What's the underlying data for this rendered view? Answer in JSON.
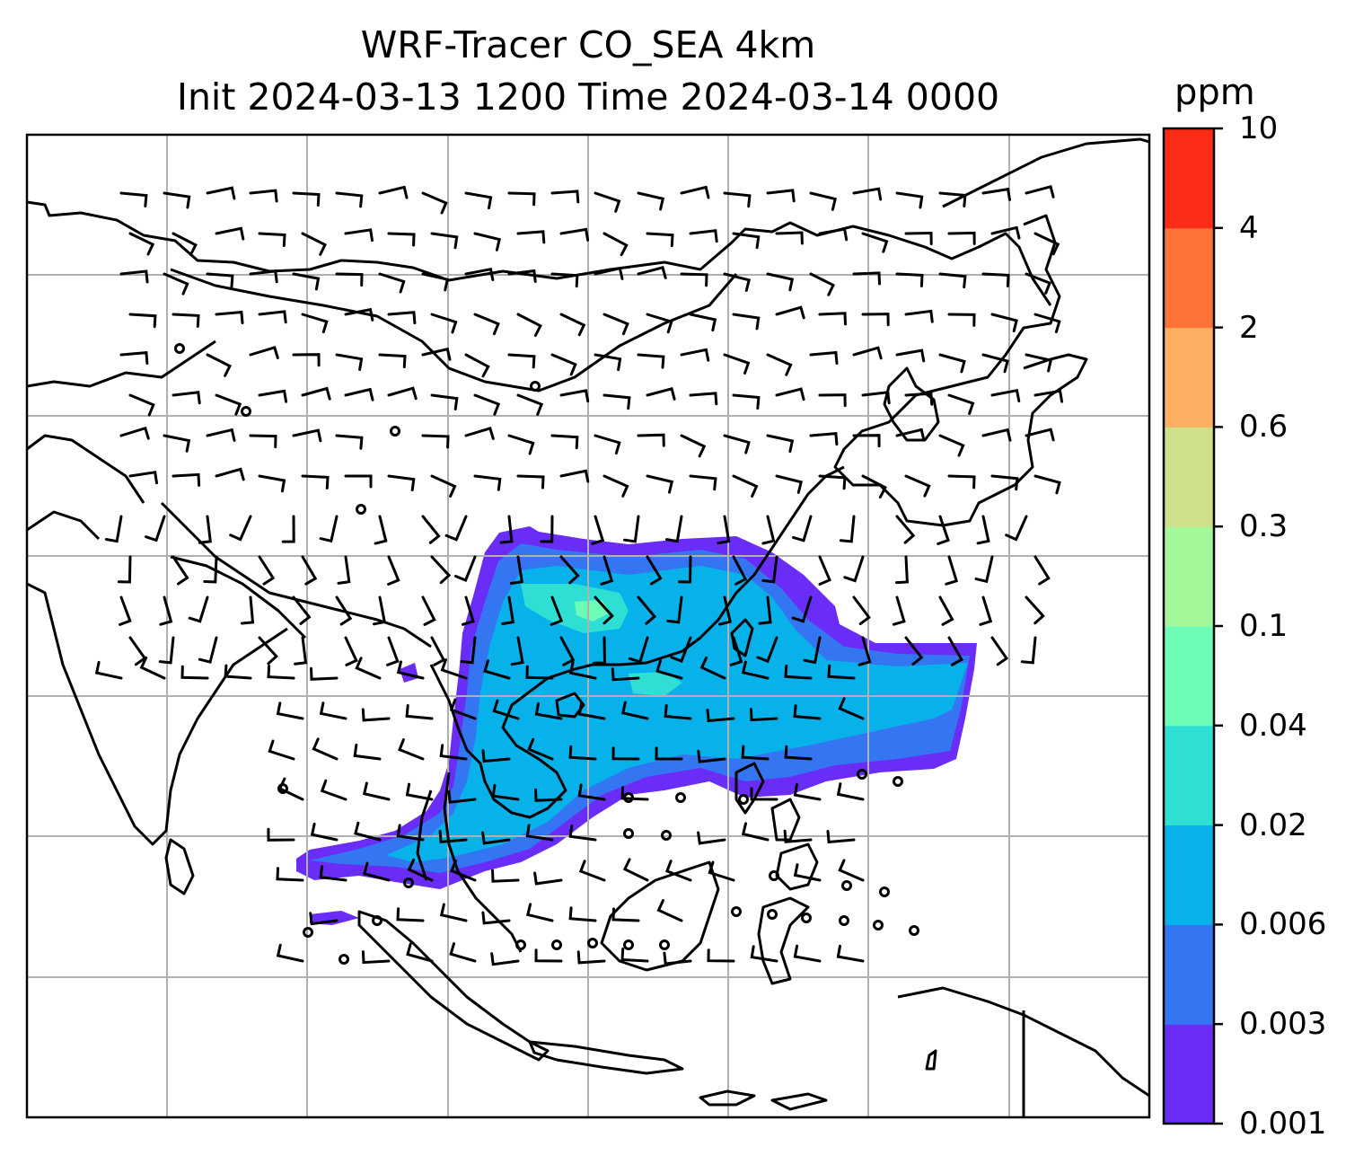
{
  "title": {
    "line1": "WRF-Tracer CO_SEA 4km",
    "line2": "Init 2024-03-13 1200 Time 2024-03-14 0000"
  },
  "colorbar": {
    "unit": "ppm",
    "levels": [
      "0.001",
      "0.003",
      "0.006",
      "0.02",
      "0.04",
      "0.1",
      "0.3",
      "0.6",
      "2",
      "4",
      "10"
    ],
    "colors": [
      "#6a2cf7",
      "#3476f2",
      "#07b1ea",
      "#2fdfd4",
      "#6dfcb6",
      "#a4f89a",
      "#cfe08a",
      "#fdb062",
      "#ff7238",
      "#fd2b17"
    ]
  },
  "map": {
    "projection": "Mercator",
    "gridlines": true,
    "features": [
      "coastlines",
      "country borders",
      "wind barbs",
      "CO tracer plume"
    ]
  }
}
